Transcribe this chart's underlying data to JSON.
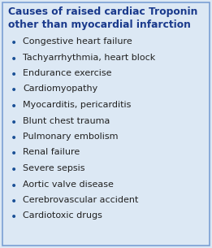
{
  "title_line1": "Causes of raised cardiac Troponin",
  "title_line2": "other than myocardial infarction",
  "title_color": "#1a3a8c",
  "bullet_color": "#1a5096",
  "text_color": "#222222",
  "background_color": "#dce8f4",
  "border_color": "#7a9fd4",
  "items": [
    "Congestive heart failure",
    "Tachyarrhythmia, heart block",
    "Endurance exercise",
    "Cardiomyopathy",
    "Myocarditis, pericarditis",
    "Blunt chest trauma",
    "Pulmonary embolism",
    "Renal failure",
    "Severe sepsis",
    "Aortic valve disease",
    "Cerebrovascular accident",
    "Cardiotoxic drugs"
  ],
  "title_fontsize": 8.8,
  "item_fontsize": 8.0,
  "figsize": [
    2.61,
    3.05
  ],
  "dpi": 100
}
